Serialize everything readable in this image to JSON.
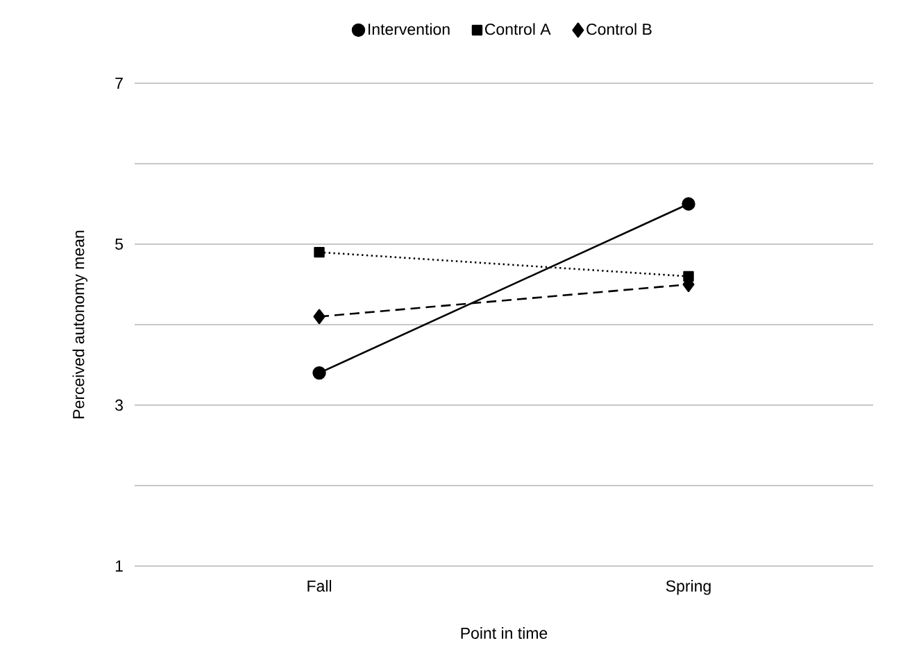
{
  "chart_data": {
    "type": "line",
    "categories": [
      "Fall",
      "Spring"
    ],
    "xlabel": "Point in time",
    "ylabel": "Perceived autonomy mean",
    "ylim": [
      1,
      7
    ],
    "yticks": [
      1,
      {
        "value": 2,
        "label": null
      },
      3,
      {
        "value": 4,
        "label": null
      },
      5,
      {
        "value": 6,
        "label": null
      },
      7
    ],
    "grid": "y",
    "legend": "top",
    "series": [
      {
        "name": "Intervention",
        "color": "#000000",
        "values": [
          3.4,
          5.5
        ],
        "marker": "circle",
        "line_style": "solid"
      },
      {
        "name": "Control A",
        "color": "#000000",
        "values": [
          4.9,
          4.6
        ],
        "marker": "square",
        "line_style": "dotted"
      },
      {
        "name": "Control B",
        "color": "#000000",
        "values": [
          4.1,
          4.5
        ],
        "marker": "diamond",
        "line_style": "dashed"
      }
    ]
  }
}
